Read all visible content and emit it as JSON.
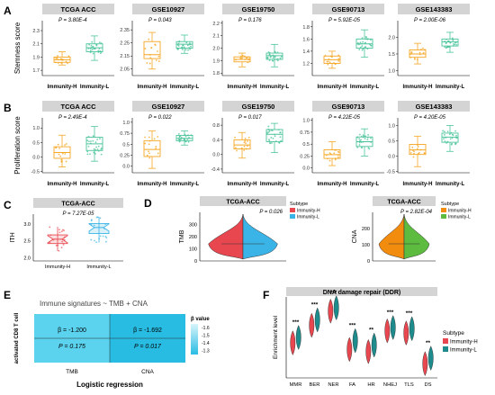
{
  "colors": {
    "immunity_h": "#F5A623",
    "immunity_l": "#4CC49A",
    "violin_h": "#E8474F",
    "violin_l": "#3AB4E6",
    "cna_h": "#F28C0F",
    "cna_l": "#5DBB3F",
    "strip": "#D4D4D4",
    "heat_left": "#5BD3EE",
    "heat_right": "#29BCE3"
  },
  "panels": [
    {
      "letter": "A",
      "ylabel": "Stemness score",
      "charts": [
        {
          "title": "TCGA ACC",
          "p": "P = 3.80E-4",
          "ylim": [
            1.62,
            2.45
          ],
          "ticks": [
            "1.7",
            "1.9",
            "2.1",
            "2.3"
          ],
          "tick_vals": [
            1.7,
            1.9,
            2.1,
            2.3
          ],
          "groups": [
            {
              "label": "Immunity-H",
              "q": [
                1.78,
                1.82,
                1.86,
                1.9,
                1.98
              ]
            },
            {
              "label": "Immunity-L",
              "q": [
                1.85,
                1.98,
                2.04,
                2.1,
                2.22
              ]
            }
          ]
        },
        {
          "title": "GSE10927",
          "p": "P = 0.043",
          "ylim": [
            2.0,
            2.42
          ],
          "ticks": [
            "2.05",
            "2.15",
            "2.25",
            "2.35"
          ],
          "tick_vals": [
            2.05,
            2.15,
            2.25,
            2.35
          ],
          "groups": [
            {
              "label": "Immunity-H",
              "q": [
                2.05,
                2.13,
                2.16,
                2.26,
                2.33
              ]
            },
            {
              "label": "Immunity-L",
              "q": [
                2.17,
                2.21,
                2.24,
                2.26,
                2.31
              ]
            }
          ]
        },
        {
          "title": "GSE19750",
          "p": "P = 0.176",
          "ylim": [
            1.78,
            2.22
          ],
          "ticks": [
            "1.8",
            "1.9",
            "2.0",
            "2.1",
            "2.2"
          ],
          "tick_vals": [
            1.8,
            1.9,
            2.0,
            2.1,
            2.2
          ],
          "groups": [
            {
              "label": "Immunity-H",
              "q": [
                1.85,
                1.89,
                1.91,
                1.93,
                1.96
              ]
            },
            {
              "label": "Immunity-L",
              "q": [
                1.85,
                1.91,
                1.94,
                1.96,
                2.03
              ]
            }
          ]
        },
        {
          "title": "GSE90713",
          "p": "P = 5.92E-05",
          "ylim": [
            1.0,
            1.9
          ],
          "ticks": [
            "1.2",
            "1.4",
            "1.6",
            "1.8"
          ],
          "tick_vals": [
            1.2,
            1.4,
            1.6,
            1.8
          ],
          "groups": [
            {
              "label": "Immunity-H",
              "q": [
                1.12,
                1.2,
                1.26,
                1.32,
                1.4
              ]
            },
            {
              "label": "Immunity-L",
              "q": [
                1.3,
                1.45,
                1.52,
                1.6,
                1.75
              ]
            }
          ]
        },
        {
          "title": "GSE143383",
          "p": "P = 2.00E-06",
          "ylim": [
            0.85,
            2.5
          ],
          "ticks": [
            "1.0",
            "1.5",
            "2.0"
          ],
          "tick_vals": [
            1.0,
            1.5,
            2.0
          ],
          "groups": [
            {
              "label": "Immunity-H",
              "q": [
                1.2,
                1.4,
                1.5,
                1.62,
                1.82
              ]
            },
            {
              "label": "Immunity-L",
              "q": [
                1.55,
                1.74,
                1.86,
                1.95,
                2.15
              ]
            }
          ]
        }
      ],
      "xlabels": [
        "Immunity-H",
        "Immunity-L"
      ]
    },
    {
      "letter": "B",
      "ylabel": "Proliferation score",
      "charts": [
        {
          "title": "TCGA ACC",
          "p": "P = 2.49E-4",
          "ylim": [
            -0.55,
            1.35
          ],
          "ticks": [
            "-0.5",
            "0.0",
            "0.5",
            "1.0"
          ],
          "tick_vals": [
            -0.5,
            0.0,
            0.5,
            1.0
          ],
          "groups": [
            {
              "label": "Immunity-H",
              "q": [
                -0.35,
                -0.05,
                0.15,
                0.35,
                0.75
              ]
            },
            {
              "label": "Immunity-L",
              "q": [
                -0.15,
                0.22,
                0.45,
                0.68,
                1.05
              ]
            }
          ]
        },
        {
          "title": "GSE10927",
          "p": "P = 0.022",
          "ylim": [
            -0.15,
            1.1
          ],
          "ticks": [
            "0.0",
            "0.25",
            "0.5",
            "0.75",
            "1.0"
          ],
          "tick_vals": [
            0.0,
            0.25,
            0.5,
            0.75,
            1.0
          ],
          "groups": [
            {
              "label": "Immunity-H",
              "q": [
                -0.05,
                0.22,
                0.38,
                0.58,
                0.8
              ]
            },
            {
              "label": "Immunity-L",
              "q": [
                0.48,
                0.58,
                0.63,
                0.7,
                0.8
              ]
            }
          ]
        },
        {
          "title": "GSE19750",
          "p": "P = 0.017",
          "ylim": [
            -0.5,
            1.0
          ],
          "ticks": [
            "-0.4",
            "0.0",
            "0.4",
            "0.8"
          ],
          "tick_vals": [
            -0.4,
            0.0,
            0.4,
            0.8
          ],
          "groups": [
            {
              "label": "Immunity-H",
              "q": [
                -0.1,
                0.15,
                0.26,
                0.4,
                0.6
              ]
            },
            {
              "label": "Immunity-L",
              "q": [
                0.05,
                0.35,
                0.55,
                0.68,
                0.85
              ]
            }
          ]
        },
        {
          "title": "GSE90713",
          "p": "P = 4.22E-05",
          "ylim": [
            -0.1,
            1.05
          ],
          "ticks": [
            "0.0",
            "0.25",
            "0.5",
            "0.75",
            "1.0"
          ],
          "tick_vals": [
            0.0,
            0.25,
            0.5,
            0.75,
            1.0
          ],
          "groups": [
            {
              "label": "Immunity-H",
              "q": [
                0.05,
                0.2,
                0.28,
                0.38,
                0.55
              ]
            },
            {
              "label": "Immunity-L",
              "q": [
                0.25,
                0.45,
                0.55,
                0.65,
                0.82
              ]
            }
          ]
        },
        {
          "title": "GSE143383",
          "p": "P = 4.20E-05",
          "ylim": [
            -0.55,
            1.25
          ],
          "ticks": [
            "-0.5",
            "0.0",
            "0.5",
            "1.0"
          ],
          "tick_vals": [
            -0.5,
            0.0,
            0.5,
            1.0
          ],
          "groups": [
            {
              "label": "Immunity-H",
              "q": [
                -0.35,
                0.05,
                0.2,
                0.38,
                0.65
              ]
            },
            {
              "label": "Immunity-L",
              "q": [
                0.15,
                0.45,
                0.62,
                0.75,
                1.0
              ]
            }
          ]
        }
      ],
      "xlabels": [
        "Immunity-H",
        "Immunity-L"
      ]
    }
  ],
  "panel_c": {
    "letter": "C",
    "title": "TCGA-ACC",
    "p": "P = 7.27E-05",
    "ylabel": "ITH",
    "ylim": [
      1.9,
      3.3
    ],
    "ticks": [
      "2.0",
      "2.5",
      "3.0"
    ],
    "tick_vals": [
      2.0,
      2.5,
      3.0
    ],
    "groups": [
      {
        "label": "Immunity-H",
        "q": [
          2.2,
          2.42,
          2.55,
          2.68,
          2.92
        ]
      },
      {
        "label": "Immunity-L",
        "q": [
          2.45,
          2.72,
          2.9,
          3.02,
          3.22
        ]
      }
    ]
  },
  "panel_d": {
    "letter": "D",
    "tmb": {
      "title": "TCGA-ACC",
      "p": "P = 0.026",
      "ylabel": "TMB",
      "ylim": [
        0,
        400
      ],
      "ticks": [
        "0",
        "100",
        "200",
        "300"
      ],
      "tick_vals": [
        0,
        100,
        200,
        300
      ],
      "legend_title": "Subtype",
      "legend": [
        "Immunity-H",
        "Immunity-L"
      ]
    },
    "cna": {
      "title": "TCGA-ACC",
      "p": "P = 2.82E-04",
      "ylabel": "CNA",
      "ylim": [
        0,
        300
      ],
      "ticks": [
        "0",
        "100",
        "200"
      ],
      "tick_vals": [
        0,
        100,
        200
      ],
      "legend_title": "Subtype",
      "legend": [
        "Immunity-H",
        "Immunity-L"
      ]
    }
  },
  "panel_e": {
    "letter": "E",
    "title": "Immune signatures ~ TMB + CNA",
    "ylabel": "activated CD8 T cell",
    "cells": [
      {
        "col": "TMB",
        "beta": "β = -1.200",
        "p": "P = 0.175",
        "value": -1.2
      },
      {
        "col": "CNA",
        "beta": "β = -1.692",
        "p": "P = 0.017",
        "value": -1.692
      }
    ],
    "xlabel": "Logistic regression",
    "legend_title": "β value",
    "legend_ticks": [
      "-1.6",
      "-1.5",
      "-1.4",
      "-1.3"
    ]
  },
  "panel_f": {
    "letter": "F",
    "title": "DNA damage repair (DDR)",
    "ylabel": "Enrichment level",
    "categories": [
      "MMR",
      "BER",
      "NER",
      "FA",
      "HR",
      "NHEJ",
      "TLS",
      "DS"
    ],
    "sig": [
      "***",
      "***",
      "***",
      "***",
      "**",
      "***",
      "***",
      "**"
    ],
    "h_med": [
      1.3,
      2.1,
      2.75,
      1.0,
      0.9,
      1.85,
      1.75,
      0.35
    ],
    "l_med": [
      1.55,
      2.35,
      2.9,
      1.4,
      1.2,
      2.0,
      1.95,
      0.6
    ],
    "ylim": [
      -0.3,
      3.4
    ],
    "legend_title": "Subtype",
    "legend": [
      "Immunity-H",
      "Immunity-L"
    ]
  }
}
